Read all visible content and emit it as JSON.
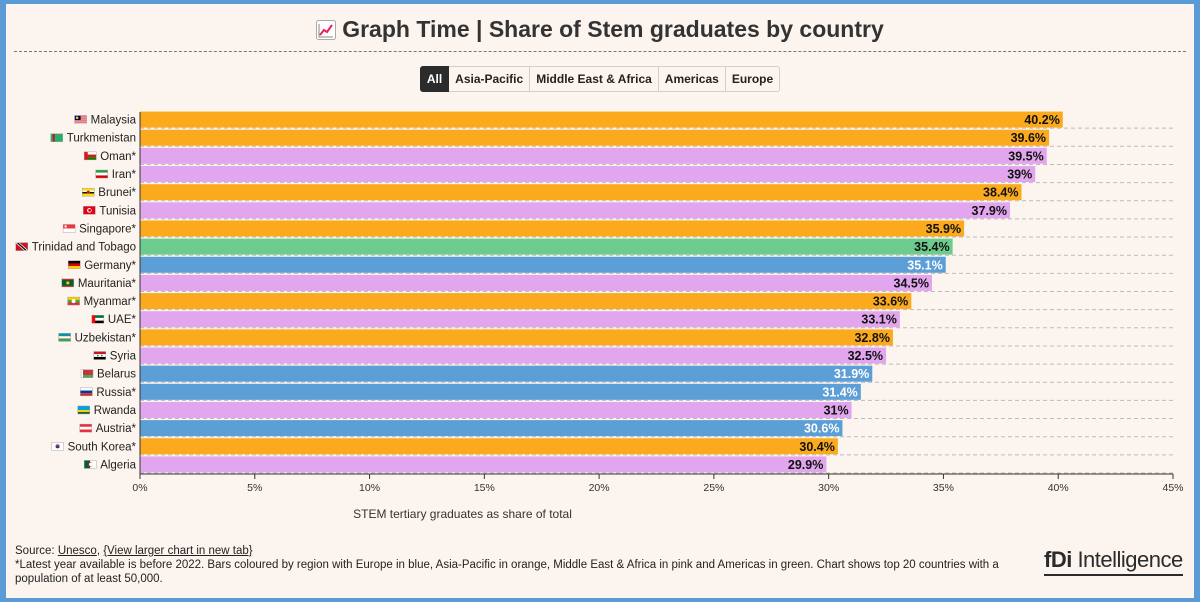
{
  "header": {
    "title": "Graph Time | Share of Stem graduates by country",
    "icon": "chart-increasing-icon"
  },
  "filters": [
    "All",
    "Asia-Pacific",
    "Middle East & Africa",
    "Americas",
    "Europe"
  ],
  "active_filter": "All",
  "colors": {
    "Asia-Pacific": "#fbaa1d",
    "Middle East & Africa": "#e1a6ee",
    "Americas": "#6ccc8e",
    "Europe": "#5c9ed6"
  },
  "chart_data": {
    "type": "bar",
    "orientation": "horizontal",
    "xlabel": "STEM tertiary graduates as share of total",
    "xlim": [
      0,
      45
    ],
    "x_ticks": [
      "0%",
      "5%",
      "10%",
      "15%",
      "20%",
      "25%",
      "30%",
      "35%",
      "40%",
      "45%"
    ],
    "grid": "horizontal dashed",
    "categories": [
      "Malaysia",
      "Turkmenistan",
      "Oman*",
      "Iran*",
      "Brunei*",
      "Tunisia",
      "Singapore*",
      "Trinidad and Tobago",
      "Germany*",
      "Mauritania*",
      "Myanmar*",
      "UAE*",
      "Uzbekistan*",
      "Syria",
      "Belarus",
      "Russia*",
      "Rwanda",
      "Austria*",
      "South Korea*",
      "Algeria"
    ],
    "values": [
      40.2,
      39.6,
      39.5,
      39,
      38.4,
      37.9,
      35.9,
      35.4,
      35.1,
      34.5,
      33.6,
      33.1,
      32.8,
      32.5,
      31.9,
      31.4,
      31,
      30.6,
      30.4,
      29.9
    ],
    "value_labels": [
      "40.2%",
      "39.6%",
      "39.5%",
      "39%",
      "38.4%",
      "37.9%",
      "35.9%",
      "35.4%",
      "35.1%",
      "34.5%",
      "33.6%",
      "33.1%",
      "32.8%",
      "32.5%",
      "31.9%",
      "31.4%",
      "31%",
      "30.6%",
      "30.4%",
      "29.9%"
    ],
    "regions": [
      "Asia-Pacific",
      "Asia-Pacific",
      "Middle East & Africa",
      "Middle East & Africa",
      "Asia-Pacific",
      "Middle East & Africa",
      "Asia-Pacific",
      "Americas",
      "Europe",
      "Middle East & Africa",
      "Asia-Pacific",
      "Middle East & Africa",
      "Asia-Pacific",
      "Middle East & Africa",
      "Europe",
      "Europe",
      "Middle East & Africa",
      "Europe",
      "Asia-Pacific",
      "Middle East & Africa"
    ],
    "flag_icons": [
      "malaysia-flag-icon",
      "turkmenistan-flag-icon",
      "oman-flag-icon",
      "iran-flag-icon",
      "brunei-flag-icon",
      "tunisia-flag-icon",
      "singapore-flag-icon",
      "trinidad-and-tobago-flag-icon",
      "germany-flag-icon",
      "mauritania-flag-icon",
      "myanmar-flag-icon",
      "uae-flag-icon",
      "uzbekistan-flag-icon",
      "syria-flag-icon",
      "belarus-flag-icon",
      "russia-flag-icon",
      "rwanda-flag-icon",
      "austria-flag-icon",
      "south-korea-flag-icon",
      "algeria-flag-icon"
    ]
  },
  "footer": {
    "source_prefix": "Source: ",
    "source_link": "Unesco",
    "separator": ", ",
    "larger_chart_link": "{View larger chart in new tab}",
    "note": "*Latest year available is before 2022. Bars coloured by region with Europe in blue, Asia-Pacific in orange, Middle East & Africa in pink and Americas in green. Chart shows top 20 countries with a population of at least 50,000."
  },
  "logo": {
    "part1": "fDi",
    "part2": " Intelligence"
  }
}
